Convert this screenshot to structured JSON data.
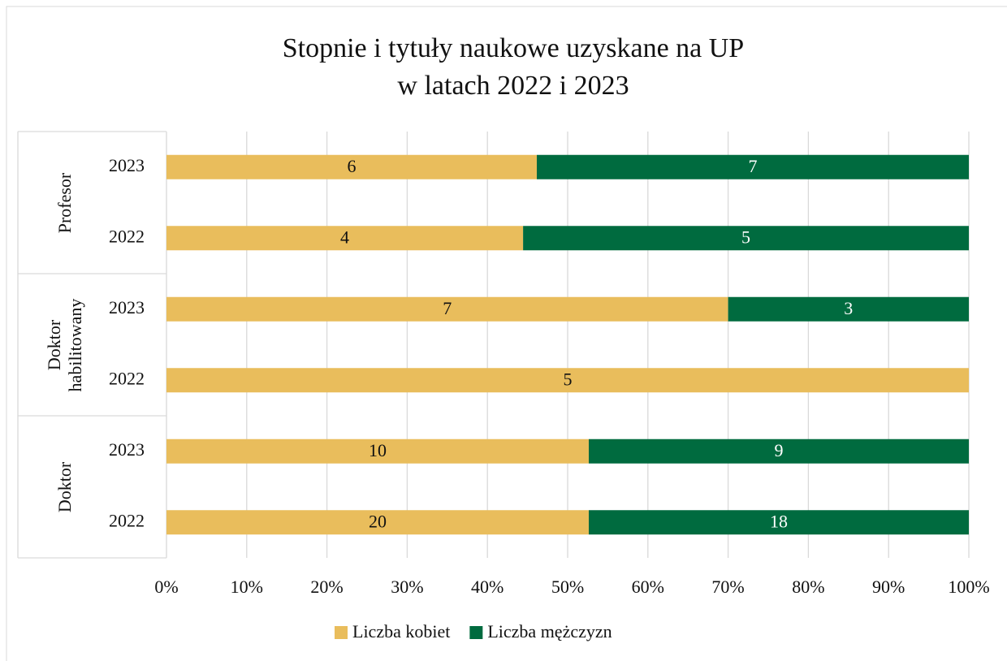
{
  "chart_data": {
    "type": "bar",
    "orientation": "horizontal",
    "stacking": "percent",
    "title": "Stopnie i tytuły naukowe uzyskane na UP",
    "subtitle": "w latach 2022 i 2023",
    "categories": [
      "2023",
      "2022",
      "2023",
      "2022",
      "2023",
      "2022"
    ],
    "category_groups": [
      "Profesor",
      "Profesor",
      "Doktor habilitowany",
      "Doktor habilitowany",
      "Doktor",
      "Doktor"
    ],
    "series": [
      {
        "name": "Liczba kobiet",
        "color": "#E9BD5C",
        "label_color": "#111111",
        "values": [
          6,
          4,
          7,
          5,
          10,
          20
        ]
      },
      {
        "name": "Liczba mężczyzn",
        "color": "#006B3F",
        "label_color": "#ffffff",
        "values": [
          7,
          5,
          3,
          0,
          9,
          18
        ]
      }
    ],
    "xlim": [
      0,
      100
    ],
    "xticks": [
      {
        "value": 0,
        "label": "0%"
      },
      {
        "value": 10,
        "label": "10%"
      },
      {
        "value": 20,
        "label": "20%"
      },
      {
        "value": 30,
        "label": "30%"
      },
      {
        "value": 40,
        "label": "40%"
      },
      {
        "value": 50,
        "label": "50%"
      },
      {
        "value": 60,
        "label": "60%"
      },
      {
        "value": 70,
        "label": "70%"
      },
      {
        "value": 80,
        "label": "80%"
      },
      {
        "value": 90,
        "label": "90%"
      },
      {
        "value": 100,
        "label": "100%"
      }
    ],
    "grid": true,
    "legend": "bottom"
  }
}
